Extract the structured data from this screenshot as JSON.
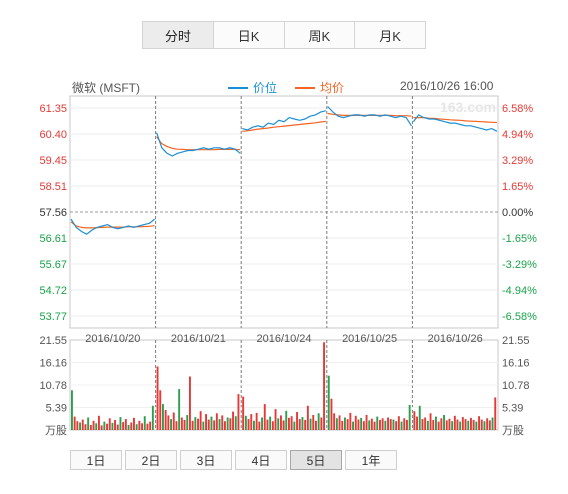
{
  "tabs": [
    {
      "label": "分时",
      "active": true
    },
    {
      "label": "日K",
      "active": false
    },
    {
      "label": "周K",
      "active": false
    },
    {
      "label": "月K",
      "active": false
    }
  ],
  "header": {
    "stock_name": "微软 (MSFT)",
    "legend": [
      {
        "label": "价位",
        "color": "#1a8fd5"
      },
      {
        "label": "均价",
        "color": "#f26522"
      }
    ],
    "datetime": "2016/10/26 16:00"
  },
  "watermark": "163.com",
  "range_buttons": [
    {
      "label": "1日",
      "active": false
    },
    {
      "label": "2日",
      "active": false
    },
    {
      "label": "3日",
      "active": false
    },
    {
      "label": "4日",
      "active": false
    },
    {
      "label": "5日",
      "active": true
    },
    {
      "label": "1年",
      "active": false
    }
  ],
  "chart_data": [
    {
      "type": "line",
      "title": "",
      "series_names": [
        "价位",
        "均价"
      ],
      "price_axis_ticks": [
        "61.35",
        "60.40",
        "59.45",
        "58.51",
        "57.56",
        "56.61",
        "55.67",
        "54.72",
        "53.77"
      ],
      "percent_axis_ticks": [
        "6.58%",
        "4.94%",
        "3.29%",
        "1.65%",
        "0.00%",
        "-1.65%",
        "-3.29%",
        "-4.94%",
        "-6.58%"
      ],
      "ylim": [
        53.77,
        61.35
      ],
      "baseline": 57.56,
      "days": [
        "2016/10/20",
        "2016/10/21",
        "2016/10/24",
        "2016/10/25",
        "2016/10/26"
      ],
      "price": [
        [
          57.3,
          57.0,
          56.85,
          56.75,
          56.9,
          57.0,
          57.05,
          57.1,
          57.0,
          56.95,
          57.0,
          57.05,
          57.0,
          57.05,
          57.1,
          57.15,
          57.3
        ],
        [
          60.45,
          59.9,
          59.7,
          59.6,
          59.7,
          59.75,
          59.8,
          59.8,
          59.85,
          59.9,
          59.85,
          59.9,
          59.9,
          59.85,
          59.9,
          59.85,
          59.7
        ],
        [
          60.6,
          60.55,
          60.65,
          60.7,
          60.65,
          60.8,
          60.75,
          60.9,
          60.85,
          61.0,
          60.95,
          60.9,
          60.95,
          61.05,
          61.1,
          61.2,
          61.25
        ],
        [
          61.4,
          61.2,
          61.05,
          61.0,
          61.05,
          61.1,
          61.1,
          61.05,
          61.1,
          61.1,
          61.05,
          61.1,
          61.05,
          61.0,
          61.05,
          61.0,
          60.7
        ],
        [
          60.85,
          61.1,
          61.0,
          60.95,
          60.95,
          60.9,
          60.85,
          60.8,
          60.8,
          60.75,
          60.7,
          60.7,
          60.65,
          60.6,
          60.55,
          60.6,
          60.5
        ]
      ],
      "average": [
        [
          57.2,
          57.05,
          57.0,
          56.98,
          56.98,
          56.99,
          57.0,
          57.01,
          57.01,
          57.01,
          57.01,
          57.02,
          57.02,
          57.02,
          57.03,
          57.04,
          57.06
        ],
        [
          60.3,
          60.05,
          59.95,
          59.88,
          59.85,
          59.84,
          59.83,
          59.83,
          59.83,
          59.83,
          59.83,
          59.83,
          59.84,
          59.84,
          59.84,
          59.84,
          59.83
        ],
        [
          60.5,
          60.52,
          60.55,
          60.58,
          60.6,
          60.62,
          60.65,
          60.67,
          60.69,
          60.71,
          60.73,
          60.75,
          60.77,
          60.79,
          60.81,
          60.84,
          60.86
        ],
        [
          61.15,
          61.12,
          61.1,
          61.08,
          61.08,
          61.08,
          61.08,
          61.08,
          61.08,
          61.08,
          61.08,
          61.08,
          61.08,
          61.07,
          61.07,
          61.07,
          61.05
        ],
        [
          61.0,
          61.0,
          61.0,
          60.98,
          60.97,
          60.95,
          60.94,
          60.92,
          60.91,
          60.9,
          60.88,
          60.87,
          60.86,
          60.85,
          60.84,
          60.83,
          60.82
        ]
      ]
    },
    {
      "type": "bar",
      "title": "",
      "unit_label": "万股",
      "volume_axis_ticks": [
        "21.55",
        "16.16",
        "10.78",
        "5.39"
      ],
      "ylim": [
        0,
        21.55
      ],
      "volume": [
        [
          9.5,
          3.2,
          2.1,
          1.8,
          2.5,
          1.4,
          3.0,
          1.2,
          2.2,
          1.6,
          3.4,
          1.1,
          2.0,
          1.5,
          2.8,
          1.7,
          2.4,
          1.3,
          3.1,
          1.9,
          2.6,
          1.2,
          1.8,
          2.9,
          1.4,
          2.2,
          1.6,
          3.3,
          1.5,
          2.0,
          5.8
        ],
        [
          15.2,
          9.5,
          6.2,
          4.8,
          3.5,
          2.6,
          4.2,
          2.1,
          9.8,
          3.0,
          2.4,
          3.6,
          12.8,
          2.2,
          3.1,
          2.7,
          4.5,
          2.0,
          3.8,
          2.5,
          3.2,
          2.3,
          4.0,
          2.6,
          3.5,
          2.1,
          3.0,
          2.8,
          4.4,
          3.3,
          8.6
        ],
        [
          8.0,
          3.4,
          2.6,
          3.8,
          2.2,
          4.1,
          2.0,
          3.0,
          6.2,
          2.5,
          3.2,
          2.1,
          5.0,
          2.8,
          3.5,
          2.3,
          4.6,
          2.9,
          3.3,
          2.0,
          4.3,
          2.6,
          3.1,
          2.4,
          5.8,
          2.7,
          3.6,
          2.2,
          4.0,
          3.0,
          21.0
        ],
        [
          13.0,
          7.5,
          4.0,
          2.8,
          3.5,
          2.2,
          3.0,
          2.6,
          4.1,
          2.0,
          3.4,
          2.5,
          2.9,
          2.1,
          3.6,
          2.3,
          2.7,
          2.0,
          3.2,
          2.4,
          2.8,
          2.2,
          3.0,
          2.6,
          2.5,
          2.1,
          3.3,
          2.0,
          2.8,
          2.4,
          6.0
        ],
        [
          4.5,
          3.2,
          5.8,
          2.6,
          3.0,
          2.2,
          4.0,
          2.4,
          3.2,
          2.0,
          2.8,
          3.6,
          2.3,
          2.7,
          2.1,
          3.4,
          2.5,
          2.0,
          3.1,
          2.6,
          2.2,
          2.9,
          2.4,
          2.0,
          3.3,
          2.5,
          2.1,
          2.8,
          2.3,
          3.0,
          7.8
        ]
      ]
    }
  ]
}
